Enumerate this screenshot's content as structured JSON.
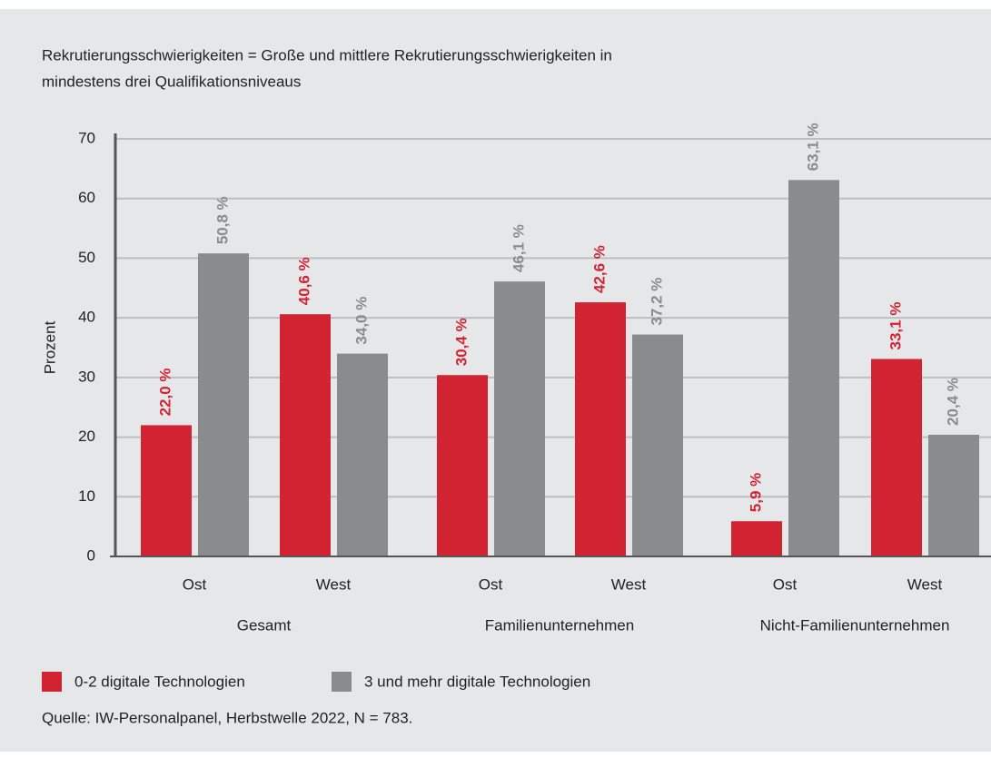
{
  "chart_data": {
    "type": "bar",
    "title": [
      "Rekrutierungsschwierigkeiten = Große und mittlere Rekrutierungsschwierigkeiten in",
      "mindestens drei Qualifikationsniveaus"
    ],
    "ylabel": "Prozent",
    "categories": [
      "Ost",
      "West",
      "Ost",
      "West",
      "Ost",
      "West"
    ],
    "groups": [
      "Gesamt",
      "Familienunternehmen",
      "Nicht-Familienunternehmen"
    ],
    "series": [
      {
        "name": "0-2 digitale Technologien",
        "color": "#d22333",
        "values": [
          22.0,
          40.6,
          30.4,
          42.6,
          5.9,
          33.1
        ],
        "value_labels": [
          "22,0 %",
          "40,6 %",
          "30,4 %",
          "42,6 %",
          "5,9 %",
          "33,1 %"
        ]
      },
      {
        "name": "3 und mehr digitale Technologien",
        "color": "#8a8b8d",
        "values": [
          50.8,
          34.0,
          46.1,
          37.2,
          63.1,
          20.4
        ],
        "value_labels": [
          "50,8 %",
          "34,0 %",
          "46,1 %",
          "37,2 %",
          "63,1 %",
          "20,4 %"
        ]
      }
    ],
    "ylim": [
      0,
      70
    ],
    "yticks": [
      0,
      10,
      20,
      30,
      40,
      50,
      60,
      70
    ],
    "grid": true,
    "source": "Quelle: IW-Personalpanel, Herbstwelle 2022, N = 783."
  }
}
